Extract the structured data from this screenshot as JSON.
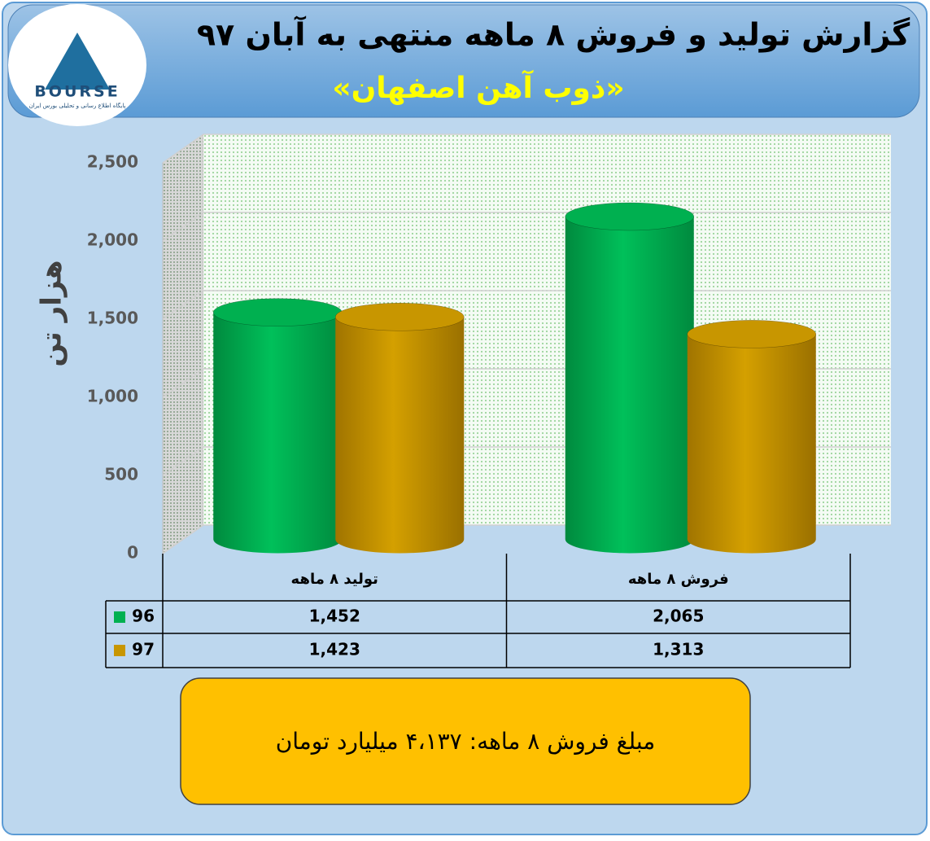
{
  "logo": {
    "name": "BOURSE",
    "tagline": "پایگاه اطلاع رسانی و تحلیلی بورس ایران"
  },
  "chart_data": {
    "type": "bar3d",
    "title": "گزارش تولید و فروش ۸ ماهه منتهی به آبان ۹۷",
    "subtitle": "«ذوب آهن اصفهان»",
    "y_label": "هزار تن",
    "categories": [
      "تولید ۸ ماهه",
      "فروش ۸ ماهه"
    ],
    "series": [
      {
        "name": "96",
        "color": "#00b050",
        "values": [
          1452,
          2065
        ],
        "value_labels": [
          "1,452",
          "2,065"
        ]
      },
      {
        "name": "97",
        "color": "#c89600",
        "values": [
          1423,
          1313
        ],
        "value_labels": [
          "1,423",
          "1,313"
        ]
      }
    ],
    "ylim": [
      0,
      2500
    ],
    "yticks": [
      0,
      500,
      {
        "value": 1000,
        "label": "1,000"
      },
      {
        "value": 1500,
        "label": "1,500"
      },
      {
        "value": 2000,
        "label": "2,000"
      },
      {
        "value": 2500,
        "label": "2,500"
      }
    ],
    "grid": true,
    "annotation": "مبلغ فروش ۸ ماهه: ۴،۱۳۷ میلیارد تومان"
  }
}
